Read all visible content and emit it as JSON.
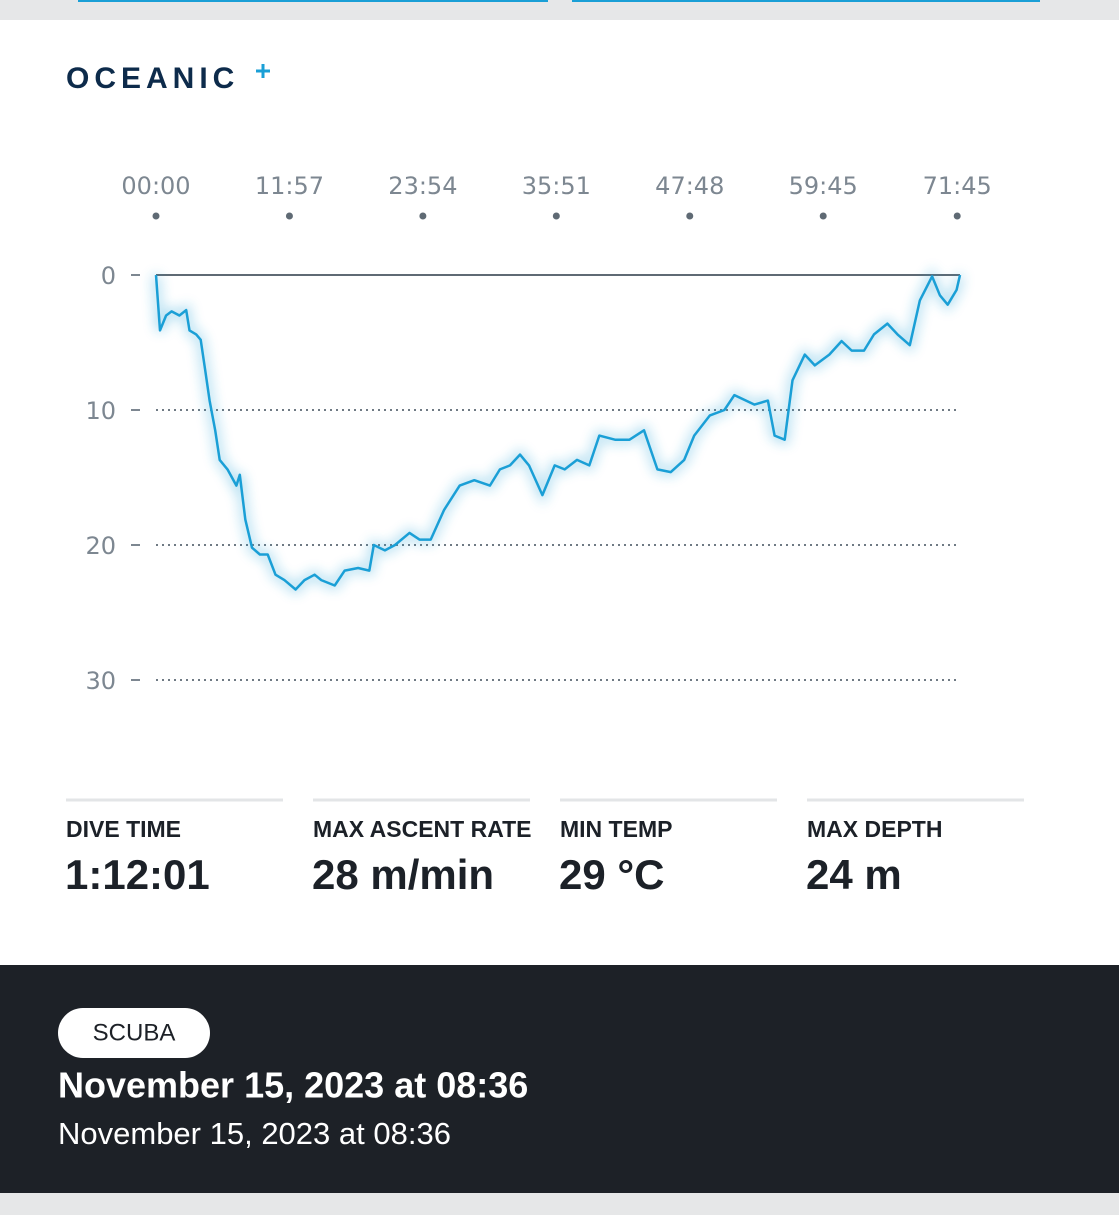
{
  "logo": "OCEANIC",
  "chart_data": {
    "type": "line",
    "color": "#1a9fd6",
    "invert_y": true,
    "grid": true,
    "xlim": [
      0,
      72
    ],
    "ylim": [
      0,
      30
    ],
    "xticks": [
      {
        "value": 0,
        "label": "00:00"
      },
      {
        "value": 11.95,
        "label": "11:57"
      },
      {
        "value": 23.9,
        "label": "23:54"
      },
      {
        "value": 35.85,
        "label": "35:51"
      },
      {
        "value": 47.8,
        "label": "47:48"
      },
      {
        "value": 59.75,
        "label": "59:45"
      },
      {
        "value": 71.75,
        "label": "71:45"
      }
    ],
    "yticks": [
      0,
      10,
      20,
      30
    ],
    "x": [
      0,
      0.36,
      0.9,
      1.4,
      2.1,
      2.7,
      3.0,
      3.6,
      4.0,
      4.4,
      4.8,
      5.3,
      5.7,
      6.4,
      7.2,
      7.5,
      8.0,
      8.6,
      9.3,
      10.0,
      10.7,
      11.5,
      12.5,
      13.3,
      14.2,
      14.8,
      16.0,
      16.9,
      18.1,
      19.1,
      19.5,
      20.5,
      21.4,
      22.7,
      23.6,
      24.6,
      25.8,
      27.2,
      28.5,
      29.9,
      30.8,
      31.7,
      32.6,
      33.4,
      34.6,
      35.7,
      36.6,
      37.7,
      38.8,
      39.7,
      41.1,
      42.4,
      43.7,
      44.9,
      46.1,
      47.3,
      48.2,
      49.6,
      50.9,
      51.8,
      53.6,
      54.8,
      55.4,
      56.3,
      57.0,
      58.1,
      59.0,
      60.3,
      61.4,
      62.3,
      63.4,
      64.3,
      65.5,
      66.4,
      67.5,
      68.4,
      69.5,
      70.2,
      70.9,
      71.7,
      72.0
    ],
    "values": [
      0,
      4.1,
      3.0,
      2.7,
      3.0,
      2.6,
      4.1,
      4.4,
      4.8,
      7.0,
      9.3,
      11.5,
      13.7,
      14.4,
      15.6,
      14.8,
      18.1,
      20.2,
      20.7,
      20.7,
      22.2,
      22.6,
      23.3,
      22.6,
      22.2,
      22.6,
      23.0,
      21.9,
      21.7,
      21.9,
      20.0,
      20.4,
      20.0,
      19.1,
      19.6,
      19.6,
      17.4,
      15.6,
      15.2,
      15.6,
      14.4,
      14.1,
      13.3,
      14.1,
      16.3,
      14.1,
      14.4,
      13.7,
      14.1,
      11.9,
      12.2,
      12.2,
      11.5,
      14.4,
      14.6,
      13.7,
      11.9,
      10.4,
      10.0,
      8.9,
      9.6,
      9.3,
      11.9,
      12.2,
      7.8,
      5.9,
      6.7,
      5.9,
      4.9,
      5.6,
      5.6,
      4.4,
      3.6,
      4.4,
      5.2,
      1.9,
      0.1,
      1.5,
      2.2,
      1.1,
      0
    ]
  },
  "stats": [
    {
      "label": "DIVE TIME",
      "value": "1:12:01"
    },
    {
      "label": "MAX ASCENT RATE",
      "value": "28 m/min"
    },
    {
      "label": "MIN TEMP",
      "value": "29 °C"
    },
    {
      "label": "MAX DEPTH",
      "value": "24 m"
    }
  ],
  "footer": {
    "badge": "SCUBA",
    "title": "November 15, 2023 at 08:36",
    "subtitle": "November 15, 2023 at 08:36"
  }
}
